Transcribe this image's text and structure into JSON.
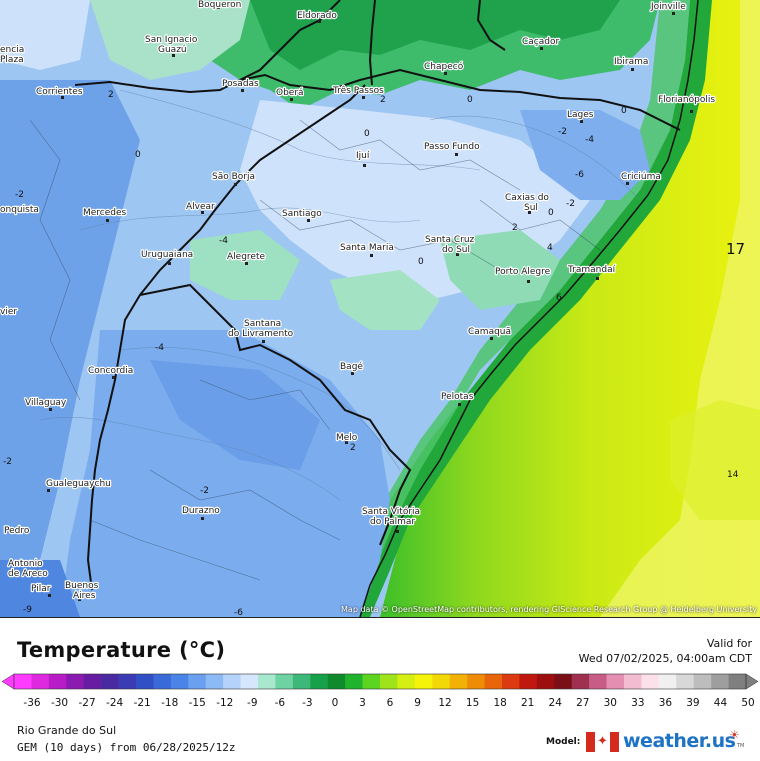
{
  "legend": {
    "title": "Temperature (°C)",
    "valid_label": "Valid for",
    "valid_time": "Wed 07/02/2025, 04:00am CDT",
    "ticks": [
      "-36",
      "-30",
      "-27",
      "-24",
      "-21",
      "-18",
      "-15",
      "-12",
      "-9",
      "-6",
      "-3",
      "0",
      "3",
      "6",
      "9",
      "12",
      "15",
      "18",
      "21",
      "24",
      "27",
      "30",
      "33",
      "36",
      "39",
      "44",
      "50"
    ],
    "colors": [
      "#ff3bff",
      "#dd28e0",
      "#b71cc6",
      "#8a1ab0",
      "#661ca3",
      "#4a2aa0",
      "#3b3cb3",
      "#3250c6",
      "#3a6ad8",
      "#4a84e6",
      "#6aa0ef",
      "#8bbaf5",
      "#b4d2fa",
      "#d5e6fd",
      "#a8e8cf",
      "#6fd2a2",
      "#3eb878",
      "#16a04a",
      "#0f8a2c",
      "#1fb32e",
      "#5cd420",
      "#9fe31a",
      "#d6ef12",
      "#f5f30a",
      "#f2d807",
      "#f2b205",
      "#ee8d05",
      "#e9650a",
      "#dc3a10",
      "#c0170e",
      "#9c0f0e",
      "#7a0f18",
      "#a03050",
      "#c75c86",
      "#e48eb2",
      "#f4bcd0",
      "#fde1ea",
      "#f0f0f0",
      "#d8d8d8",
      "#bdbdbd",
      "#9e9e9e",
      "#7f7f7f"
    ]
  },
  "footer": {
    "region": "Rio Grande do Sul",
    "model_run": "GEM (10 days) from 06/28/2025/12z",
    "model_label": "Model:",
    "brand": "weather.us"
  },
  "map": {
    "attribution": "Map data © OpenStreetMap contributors, rendering GIScience Research Group @ Heidelberg University",
    "cities": [
      {
        "name": "Boqueron"
      },
      {
        "name": "Eldorado"
      },
      {
        "name": "Joinville"
      },
      {
        "name": "San Ignacio"
      },
      {
        "name": "Guazú"
      },
      {
        "name": "Caçador"
      },
      {
        "name": "Ibirama"
      },
      {
        "name": "encia"
      },
      {
        "name": "Plaza"
      },
      {
        "name": "Posadas"
      },
      {
        "name": "Chapecó"
      },
      {
        "name": "Corrientes"
      },
      {
        "name": "Oberá"
      },
      {
        "name": "Três Passos"
      },
      {
        "name": "Florianópolis"
      },
      {
        "name": "Lages"
      },
      {
        "name": "Ijuí"
      },
      {
        "name": "Passo Fundo"
      },
      {
        "name": "São Borja"
      },
      {
        "name": "Criciúma"
      },
      {
        "name": "Caxias do"
      },
      {
        "name": "Sul"
      },
      {
        "name": "onquista"
      },
      {
        "name": "Mercedes"
      },
      {
        "name": "Alvear"
      },
      {
        "name": "Santiago"
      },
      {
        "name": "Santa Maria"
      },
      {
        "name": "Santa Cruz"
      },
      {
        "name": "do Sul"
      },
      {
        "name": "Uruguaiana"
      },
      {
        "name": "Alegrete"
      },
      {
        "name": "Porto Alegre"
      },
      {
        "name": "Tramandaí"
      },
      {
        "name": "vier"
      },
      {
        "name": "Santana"
      },
      {
        "name": "do Livramento"
      },
      {
        "name": "Camaquã"
      },
      {
        "name": "Concordia"
      },
      {
        "name": "Bagé"
      },
      {
        "name": "Villaguay"
      },
      {
        "name": "Pelotas"
      },
      {
        "name": "Melo"
      },
      {
        "name": "Gualeguaychu"
      },
      {
        "name": "Durazno"
      },
      {
        "name": "Santa Vitória"
      },
      {
        "name": "do Palmar"
      },
      {
        "name": "Pedro"
      },
      {
        "name": "Antonio"
      },
      {
        "name": "de Areco"
      },
      {
        "name": "Pilar"
      },
      {
        "name": "Buenos"
      },
      {
        "name": "Aires"
      }
    ],
    "contour_labels": [
      "2",
      "0",
      "-2",
      "-4",
      "-6",
      "2",
      "4",
      "6",
      "0",
      "0",
      "-2",
      "0",
      "-4",
      "-2",
      "-2",
      "-4",
      "2",
      "-2",
      "2",
      "0",
      "-9",
      "0",
      "-6",
      "14",
      "17"
    ]
  }
}
